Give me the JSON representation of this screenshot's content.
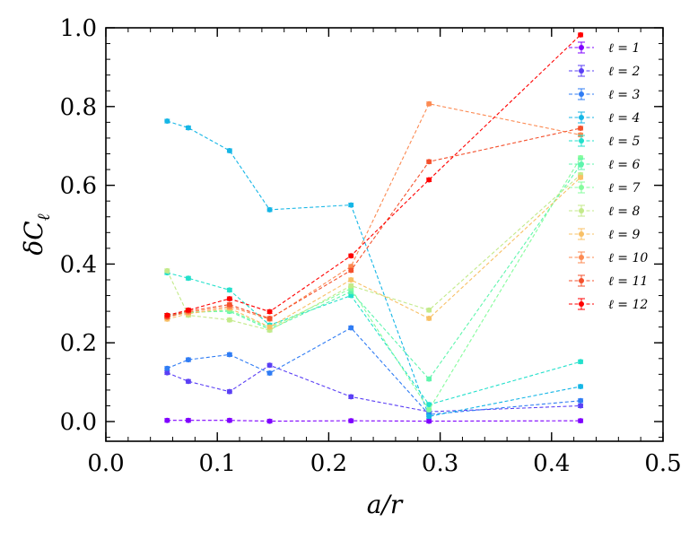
{
  "chart_data": {
    "type": "line",
    "xlabel": "a/r",
    "ylabel": "δC_ℓ",
    "xlim": [
      0.0,
      0.5
    ],
    "ylim": [
      -0.05,
      1.0
    ],
    "x_ticks": [
      0.0,
      0.1,
      0.2,
      0.3,
      0.4,
      0.5
    ],
    "x_tick_labels": [
      "0.0",
      "0.1",
      "0.2",
      "0.3",
      "0.4",
      "0.5"
    ],
    "y_ticks": [
      0.0,
      0.2,
      0.4,
      0.6,
      0.8,
      1.0
    ],
    "y_tick_labels": [
      "0.0",
      "0.2",
      "0.4",
      "0.6",
      "0.8",
      "1.0"
    ],
    "legend_position": "top-right",
    "x": [
      0.055,
      0.074,
      0.111,
      0.147,
      0.22,
      0.29,
      0.426
    ],
    "series": [
      {
        "name": "ℓ = 1",
        "color": "#7f00ff",
        "values": [
          0.003,
          0.003,
          0.003,
          0.001,
          0.002,
          0.001,
          0.002
        ]
      },
      {
        "name": "ℓ = 2",
        "color": "#5a3ff5",
        "values": [
          0.124,
          0.102,
          0.076,
          0.143,
          0.063,
          0.025,
          0.04
        ]
      },
      {
        "name": "ℓ = 3",
        "color": "#2f7cf4",
        "values": [
          0.135,
          0.157,
          0.17,
          0.123,
          0.238,
          0.018,
          0.053
        ]
      },
      {
        "name": "ℓ = 4",
        "color": "#15b6e6",
        "values": [
          0.763,
          0.746,
          0.688,
          0.538,
          0.55,
          0.013,
          0.089
        ]
      },
      {
        "name": "ℓ = 5",
        "color": "#22e0cb",
        "values": [
          0.378,
          0.364,
          0.334,
          0.245,
          0.32,
          0.043,
          0.152
        ]
      },
      {
        "name": "ℓ = 6",
        "color": "#5ef5ad",
        "values": [
          0.27,
          0.278,
          0.28,
          0.234,
          0.33,
          0.108,
          0.652
        ]
      },
      {
        "name": "ℓ = 7",
        "color": "#84fc9c",
        "values": [
          0.268,
          0.276,
          0.283,
          0.238,
          0.338,
          0.03,
          0.67
        ]
      },
      {
        "name": "ℓ = 8",
        "color": "#c3ea8a",
        "values": [
          0.383,
          0.27,
          0.258,
          0.232,
          0.345,
          0.283,
          0.627
        ]
      },
      {
        "name": "ℓ = 9",
        "color": "#f8c066",
        "values": [
          0.26,
          0.274,
          0.288,
          0.24,
          0.36,
          0.262,
          0.62
        ]
      },
      {
        "name": "ℓ = 10",
        "color": "#fc8a52",
        "values": [
          0.265,
          0.278,
          0.292,
          0.26,
          0.394,
          0.807,
          0.728
        ]
      },
      {
        "name": "ℓ = 11",
        "color": "#f4502c",
        "values": [
          0.266,
          0.281,
          0.297,
          0.262,
          0.384,
          0.66,
          0.745
        ]
      },
      {
        "name": "ℓ = 12",
        "color": "#ff0000",
        "values": [
          0.27,
          0.283,
          0.312,
          0.279,
          0.421,
          0.614,
          0.982
        ]
      }
    ]
  }
}
